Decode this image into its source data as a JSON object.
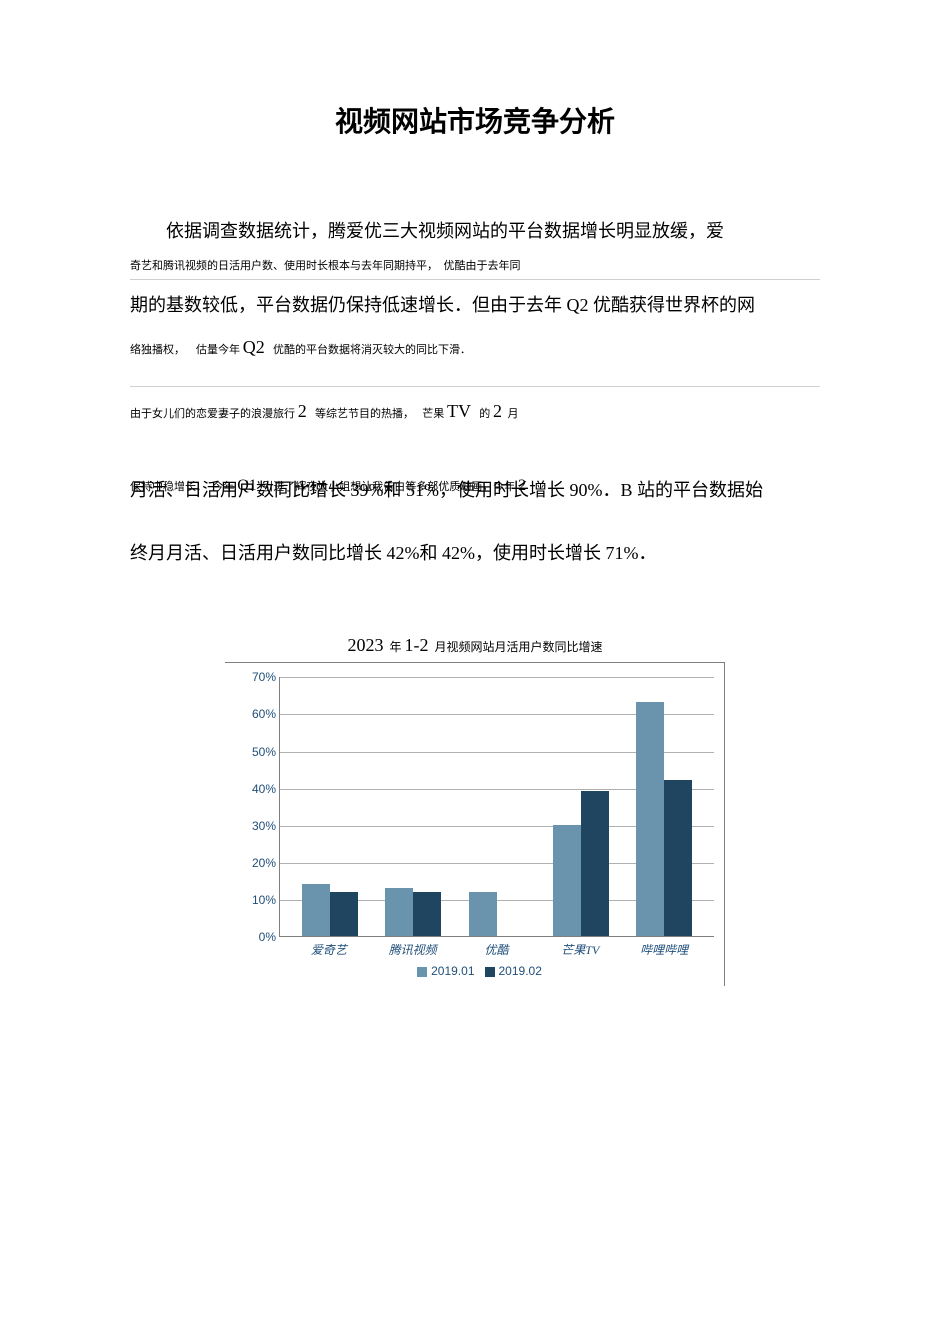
{
  "title": "视频网站市场竞争分析",
  "para1_a": "依据调查数据统计，腾爱优三大视频网站的平台数据增长明显放缓，爱",
  "small1_a": "奇艺和腾讯视频的日活用户数、使用时长根本与去年同期持平，",
  "small1_b": "优酷由于去年同",
  "para1_b": "期的基数较低，平台数据仍保持低速增长．但由于去年 Q2 优酷获得世界杯的网",
  "small2_a": "络独播权，",
  "small2_b": "估量今年",
  "small2_q2": "Q2",
  "small2_c": "优酷的平台数据将消灭较大的同比下滑．",
  "small3_a": "由于女儿们的恋爱妻子的浪漫旅行",
  "small3_n1": "2",
  "small3_b": "等综艺节目的热播，",
  "small3_c": "芒果",
  "small3_tv": "TV",
  "small3_d": "的",
  "small3_n2": "2",
  "small3_e": "月",
  "overlap_back_a": "保持中稳增长．",
  "overlap_back_b": "今年",
  "overlap_back_q1": "Q1",
  "overlap_back_c": "引进了辉夜大小姐想让我告白等多部优质动画，今年",
  "overlap_back_n": "2",
  "overlap_front": "月活、日活用户数同比增长 39%和 51%，使用时长增长 90%．B 站的平台数据始",
  "para2": "终月月活、日活用户数同比增长 42%和 42%，使用时长增长 71%．",
  "chart": {
    "title_year": "2023",
    "title_mid": "年",
    "title_range": "1-2",
    "title_rest": "月视频网站月活用户数同比增速",
    "ymax": 70,
    "ystep": 10,
    "categories": [
      "爱奇艺",
      "腾讯视频",
      "优酷",
      "芒果TV",
      "哔哩哔哩"
    ],
    "series": [
      {
        "name": "2019.01",
        "color": "#6a94ad",
        "values": [
          14,
          13,
          12,
          30,
          63
        ]
      },
      {
        "name": "2019.02",
        "color": "#1f4560",
        "values": [
          12,
          12,
          0,
          39,
          42
        ]
      }
    ],
    "grid_color": "#b0b0b0",
    "axis_color": "#7f7f7f",
    "label_color": "#1f4e79"
  }
}
